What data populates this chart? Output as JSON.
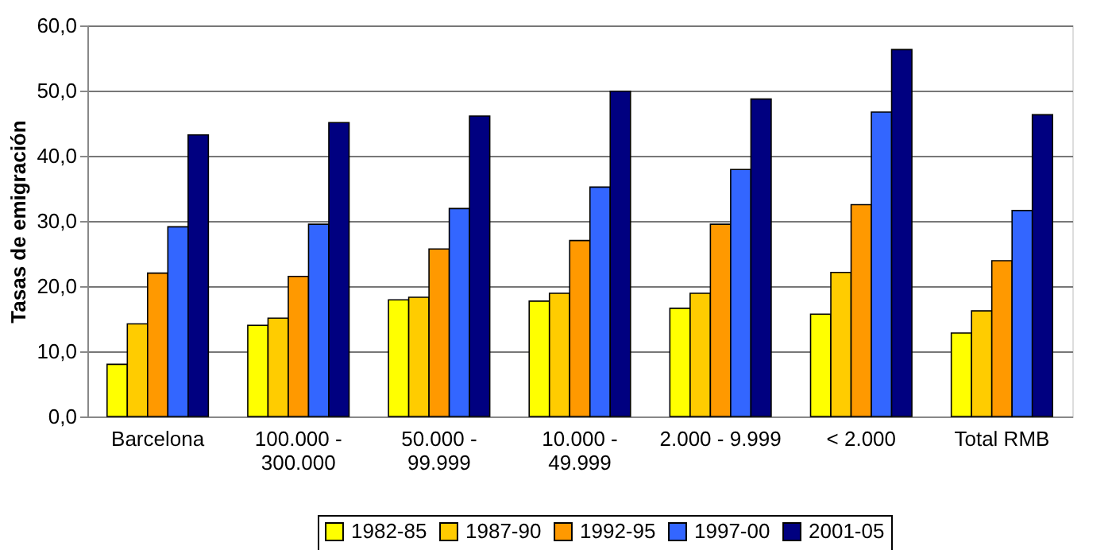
{
  "chart_data": {
    "type": "bar",
    "ylabel": "Tasas de emigración",
    "categories": [
      "Barcelona",
      "100.000 - 300.000",
      "50.000 - 99.999",
      "10.000 - 49.999",
      "2.000 - 9.999",
      "< 2.000",
      "Total RMB"
    ],
    "series": [
      {
        "name": "1982-85",
        "color": "#ffff00",
        "values": [
          8.0,
          14.0,
          17.9,
          17.7,
          16.6,
          15.7,
          12.8
        ]
      },
      {
        "name": "1987-90",
        "color": "#ffcc00",
        "values": [
          14.2,
          15.1,
          18.3,
          18.9,
          18.9,
          22.1,
          16.2
        ]
      },
      {
        "name": "1992-95",
        "color": "#ff9900",
        "values": [
          22.0,
          21.5,
          25.7,
          27.0,
          29.5,
          32.5,
          23.9
        ]
      },
      {
        "name": "1997-00",
        "color": "#3366ff",
        "values": [
          29.1,
          29.5,
          31.9,
          35.2,
          37.9,
          46.7,
          31.6
        ]
      },
      {
        "name": "2001-05",
        "color": "#000080",
        "values": [
          43.2,
          45.1,
          46.1,
          49.9,
          48.7,
          56.3,
          46.3
        ]
      }
    ],
    "ylim": [
      0,
      60
    ],
    "yticks": [
      {
        "value": 0,
        "label": "0,0"
      },
      {
        "value": 10,
        "label": "10,0"
      },
      {
        "value": 20,
        "label": "20,0"
      },
      {
        "value": 30,
        "label": "30,0"
      },
      {
        "value": 40,
        "label": "40,0"
      },
      {
        "value": 50,
        "label": "50,0"
      },
      {
        "value": 60,
        "label": "60,0"
      }
    ],
    "grid": "y",
    "legend": "bottom"
  }
}
